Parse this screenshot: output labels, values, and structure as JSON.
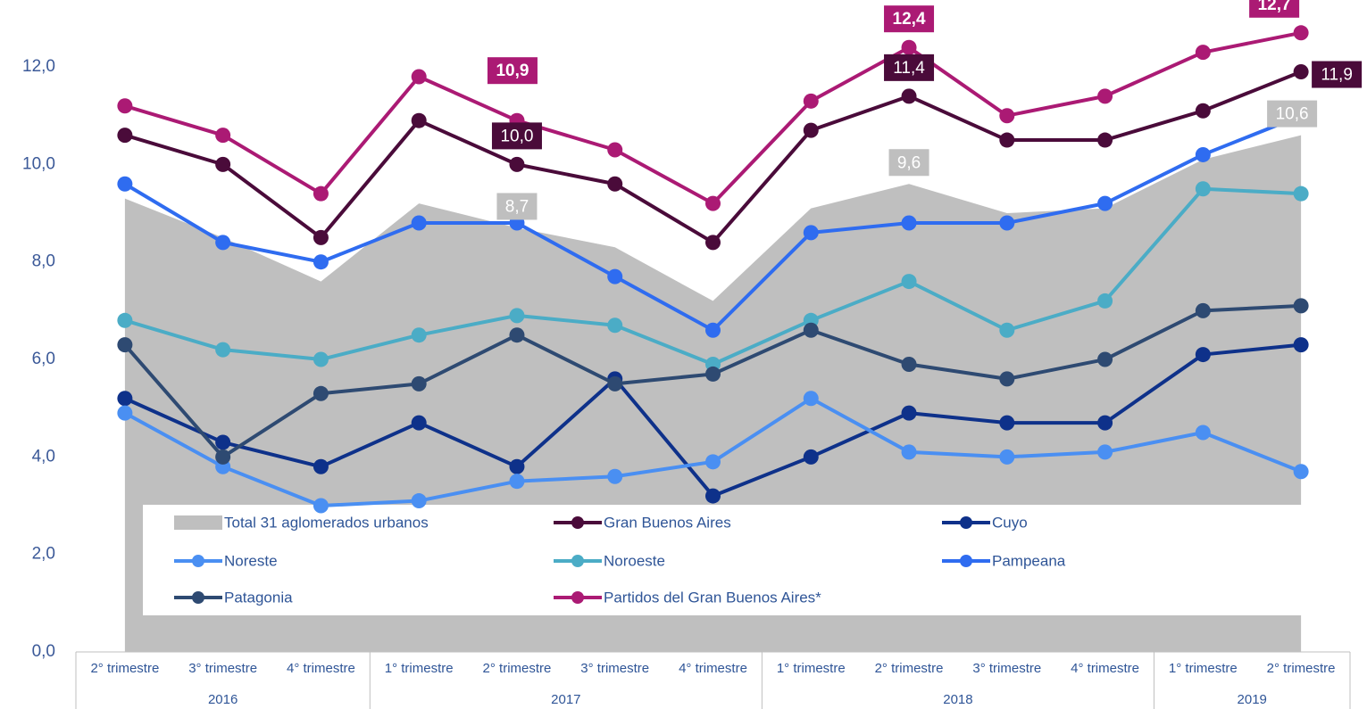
{
  "chart_data": {
    "type": "line",
    "categories": [
      "2° trimestre",
      "3° trimestre",
      "4° trimestre",
      "1° trimestre",
      "2° trimestre",
      "3° trimestre",
      "4° trimestre",
      "1° trimestre",
      "2° trimestre",
      "3° trimestre",
      "4° trimestre",
      "1° trimestre",
      "2° trimestre"
    ],
    "years": [
      "2016",
      "2016",
      "2016",
      "2017",
      "2017",
      "2017",
      "2017",
      "2018",
      "2018",
      "2018",
      "2018",
      "2019",
      "2019"
    ],
    "ylim": [
      0,
      13.3
    ],
    "yticks": [
      {
        "value": 0,
        "label": "0,0"
      },
      {
        "value": 2,
        "label": "2,0"
      },
      {
        "value": 4,
        "label": "4,0"
      },
      {
        "value": 6,
        "label": "6,0"
      },
      {
        "value": 8,
        "label": "8,0"
      },
      {
        "value": 10,
        "label": "10,0"
      },
      {
        "value": 12,
        "label": "12,0"
      }
    ],
    "series": [
      {
        "name": "Total 31 aglomerados urbanos",
        "type": "area",
        "color": "#bfbfbf",
        "values": [
          9.3,
          8.5,
          7.6,
          9.2,
          8.7,
          8.3,
          7.2,
          9.1,
          9.6,
          9.0,
          9.1,
          10.1,
          10.6
        ],
        "value_labels": [
          null,
          null,
          null,
          null,
          "8,7",
          null,
          null,
          null,
          "9,6",
          null,
          null,
          null,
          "10,6"
        ]
      },
      {
        "name": "Gran Buenos Aires",
        "color": "#4a0b3a",
        "values": [
          10.6,
          10.0,
          8.5,
          10.9,
          10.0,
          9.6,
          8.4,
          10.7,
          11.4,
          10.5,
          10.5,
          11.1,
          11.9
        ],
        "value_labels": [
          null,
          null,
          null,
          null,
          "10,0",
          null,
          null,
          null,
          "11,4",
          null,
          null,
          null,
          "11,9"
        ]
      },
      {
        "name": "Cuyo",
        "color": "#0e318a",
        "values": [
          5.2,
          4.3,
          3.8,
          4.7,
          3.8,
          5.6,
          3.2,
          4.0,
          4.9,
          4.7,
          4.7,
          6.1,
          6.3
        ]
      },
      {
        "name": "Noreste",
        "color": "#4a8ff2",
        "values": [
          4.9,
          3.8,
          3.0,
          3.1,
          3.5,
          3.6,
          3.9,
          5.2,
          4.1,
          4.0,
          4.1,
          4.5,
          3.7
        ]
      },
      {
        "name": "Noroeste",
        "color": "#4bacc6",
        "values": [
          6.8,
          6.2,
          6.0,
          6.5,
          6.9,
          6.7,
          5.9,
          6.8,
          7.6,
          6.6,
          7.2,
          9.5,
          9.4
        ]
      },
      {
        "name": "Pampeana",
        "color": "#2f6cf0",
        "values": [
          9.6,
          8.4,
          8.0,
          8.8,
          8.8,
          7.7,
          6.6,
          8.6,
          8.8,
          8.8,
          9.2,
          10.2,
          11.0
        ]
      },
      {
        "name": "Patagonia",
        "color": "#2e4a72",
        "values": [
          6.3,
          4.0,
          5.3,
          5.5,
          6.5,
          5.5,
          5.7,
          6.6,
          5.9,
          5.6,
          6.0,
          7.0,
          7.1
        ]
      },
      {
        "name": "Partidos del Gran Buenos Aires*",
        "color": "#ab1a74",
        "values": [
          11.2,
          10.6,
          9.4,
          11.8,
          10.9,
          10.3,
          9.2,
          11.3,
          12.4,
          11.0,
          11.4,
          12.3,
          12.7
        ],
        "value_labels": [
          null,
          null,
          null,
          null,
          "10,9",
          null,
          null,
          null,
          "12,4",
          null,
          null,
          null,
          "12,7"
        ]
      }
    ]
  }
}
